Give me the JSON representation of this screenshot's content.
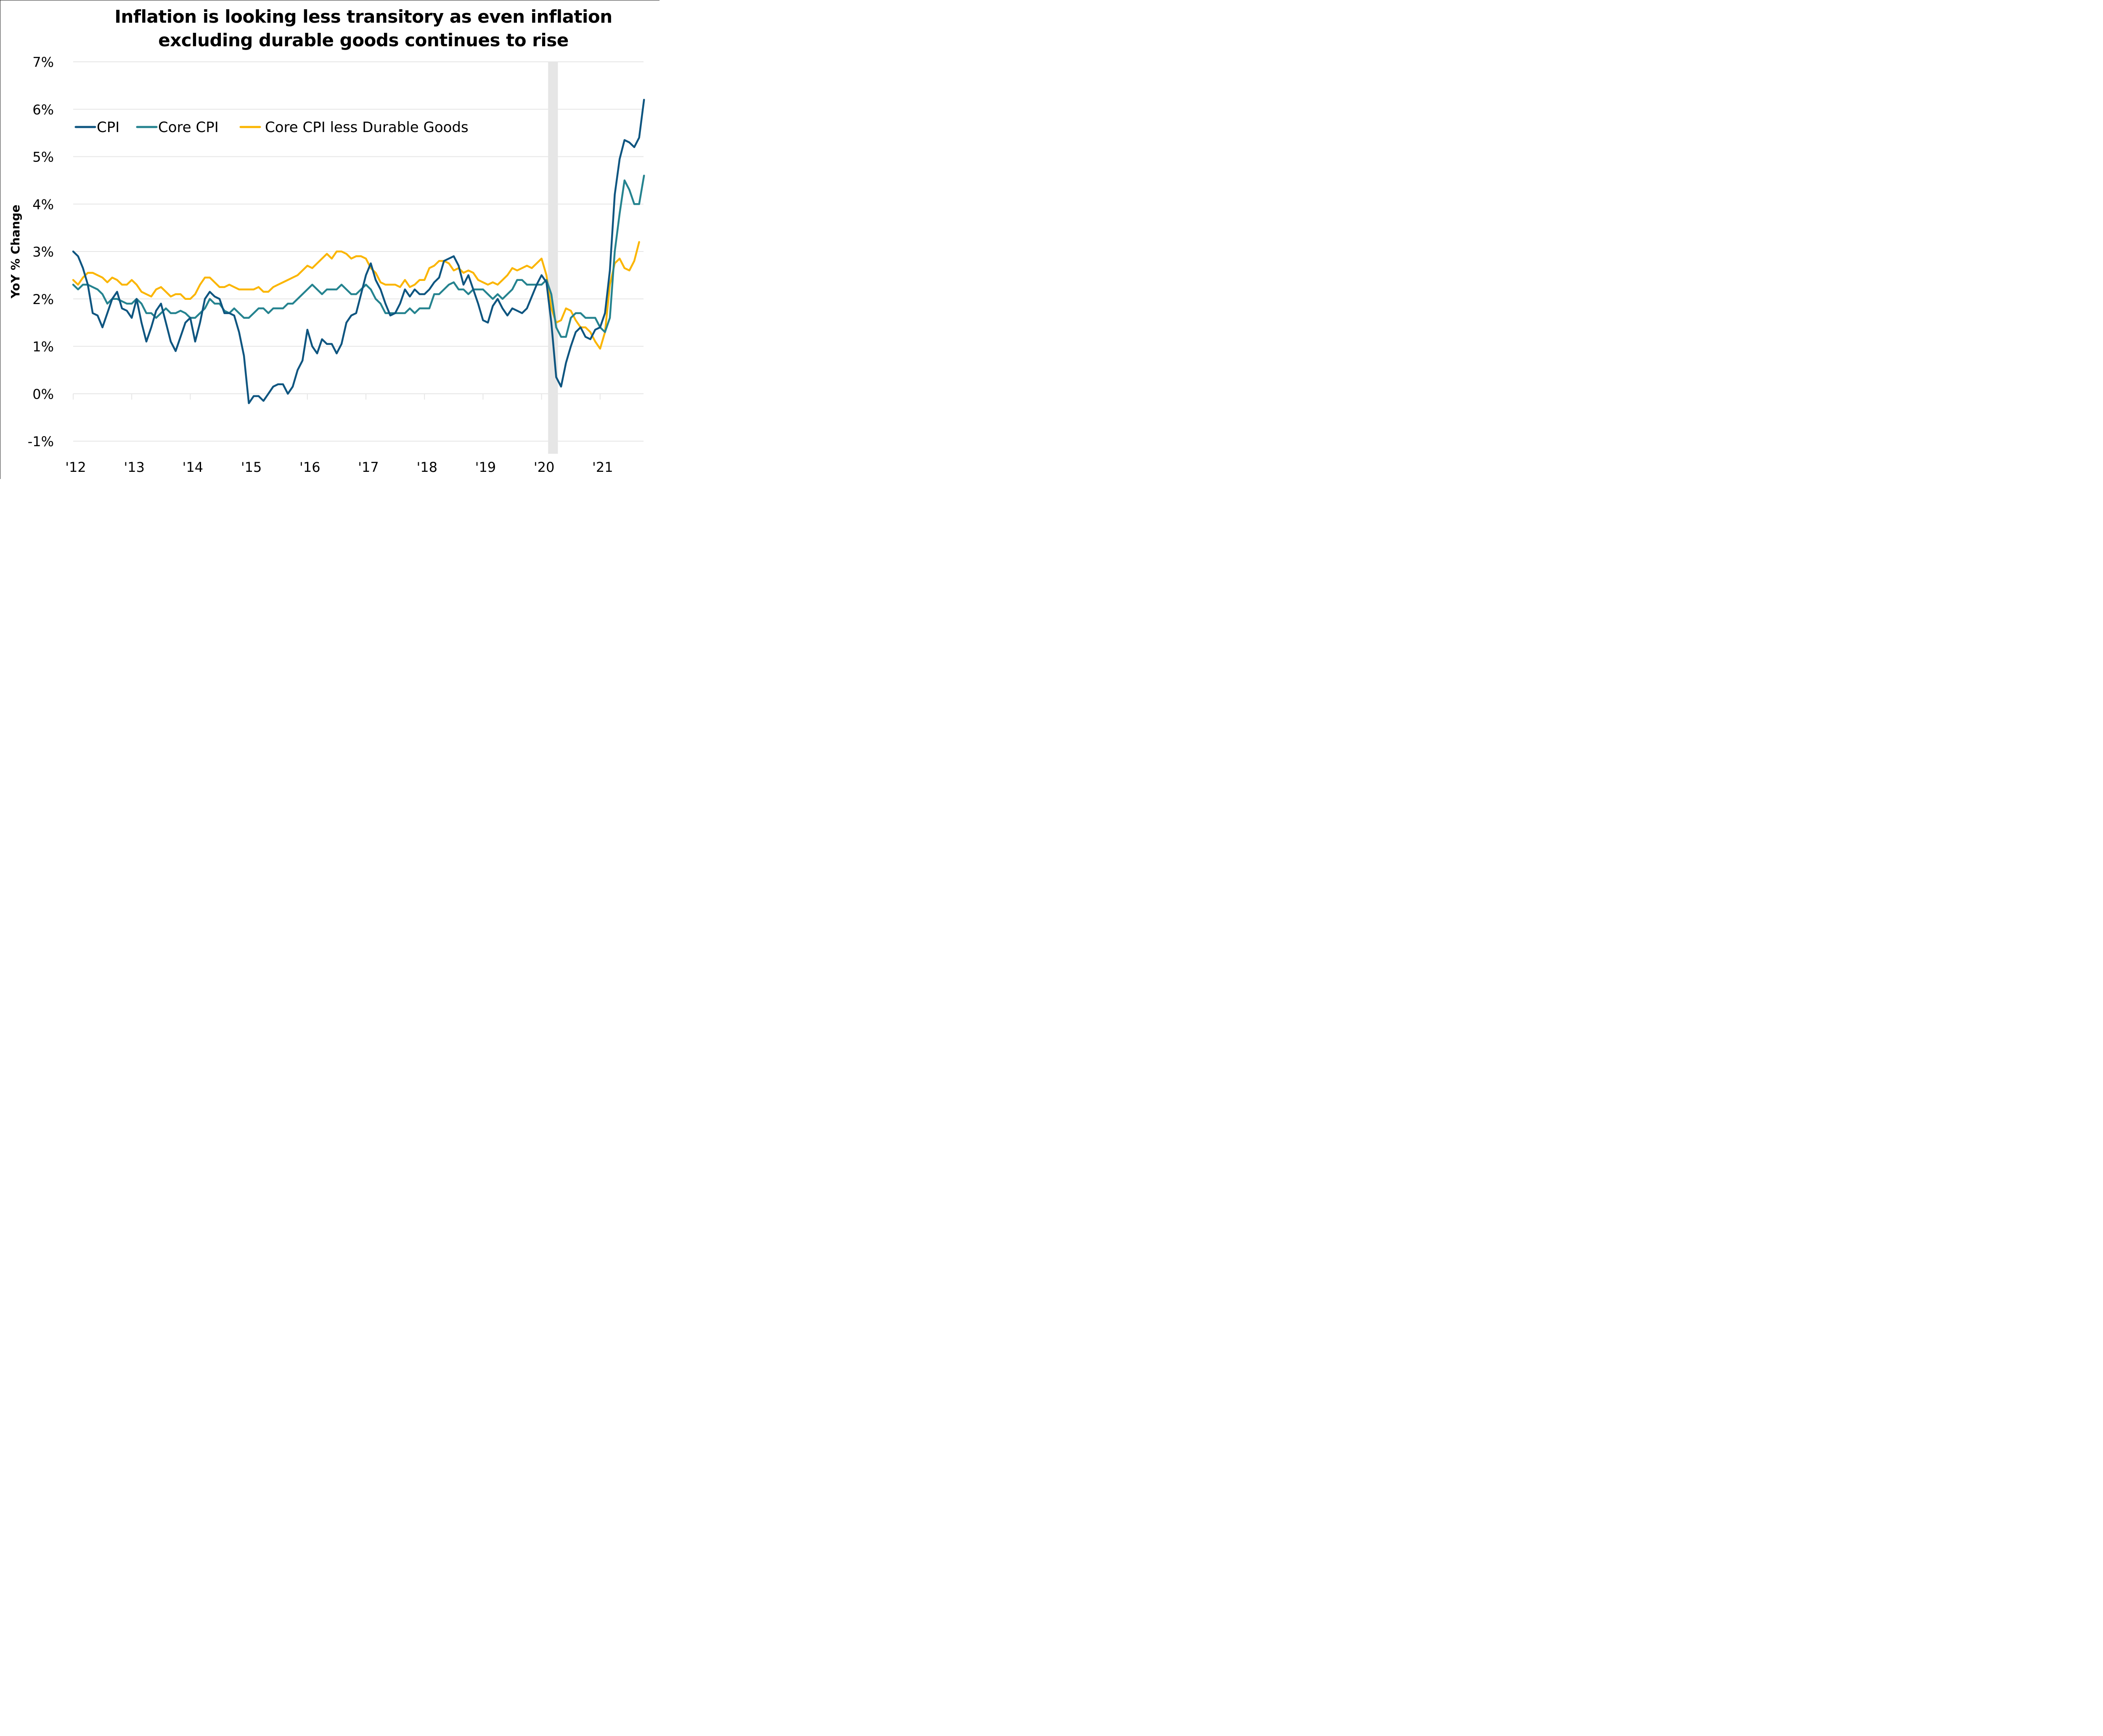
{
  "chart_data": {
    "type": "line",
    "title": "Inflation is looking less transitory as even inflation excluding durable goods continues to rise",
    "title_lines": [
      "Inflation is looking less transitory as even inflation",
      "excluding durable goods continues to rise"
    ],
    "xlabel": "",
    "ylabel": "YoY % Change",
    "ylim": [
      -1,
      7
    ],
    "yticks": [
      -1,
      0,
      1,
      2,
      3,
      4,
      5,
      6,
      7
    ],
    "ytick_labels": [
      "-1%",
      "0%",
      "1%",
      "2%",
      "3%",
      "4%",
      "5%",
      "6%",
      "7%"
    ],
    "x_start": "2012-01",
    "x_frequency": "monthly",
    "x_end": "2021-10",
    "xtick_labels": [
      "'12",
      "'13",
      "'14",
      "'15",
      "'16",
      "'17",
      "'18",
      "'19",
      "'20",
      "'21"
    ],
    "grid": "horizontal",
    "legend_position": "top-left",
    "shaded_regions": [
      {
        "label": "recession",
        "start": "2020-02",
        "end": "2020-04",
        "color": "#e6e6e6"
      }
    ],
    "series": [
      {
        "name": "CPI",
        "color": "#0e5580",
        "values": [
          3.0,
          2.9,
          2.65,
          2.3,
          1.7,
          1.65,
          1.4,
          1.7,
          2.0,
          2.15,
          1.8,
          1.75,
          1.6,
          2.0,
          1.5,
          1.1,
          1.4,
          1.75,
          1.9,
          1.5,
          1.1,
          0.9,
          1.2,
          1.5,
          1.6,
          1.1,
          1.5,
          2.0,
          2.15,
          2.05,
          2.0,
          1.7,
          1.7,
          1.65,
          1.3,
          0.8,
          -0.2,
          -0.05,
          -0.05,
          -0.15,
          0.0,
          0.15,
          0.2,
          0.2,
          0.0,
          0.15,
          0.5,
          0.7,
          1.35,
          1.0,
          0.85,
          1.15,
          1.05,
          1.05,
          0.85,
          1.05,
          1.5,
          1.65,
          1.7,
          2.1,
          2.5,
          2.75,
          2.4,
          2.2,
          1.9,
          1.65,
          1.7,
          1.9,
          2.2,
          2.05,
          2.2,
          2.1,
          2.1,
          2.2,
          2.35,
          2.45,
          2.8,
          2.85,
          2.9,
          2.7,
          2.3,
          2.5,
          2.2,
          1.9,
          1.55,
          1.5,
          1.85,
          2.0,
          1.8,
          1.65,
          1.8,
          1.75,
          1.7,
          1.8,
          2.05,
          2.3,
          2.5,
          2.35,
          1.5,
          0.35,
          0.15,
          0.65,
          1.0,
          1.3,
          1.4,
          1.2,
          1.15,
          1.35,
          1.4,
          1.7,
          2.6,
          4.2,
          4.95,
          5.35,
          5.3,
          5.2,
          5.4,
          6.2
        ]
      },
      {
        "name": "Core CPI",
        "color": "#25838f",
        "values": [
          2.3,
          2.2,
          2.3,
          2.3,
          2.25,
          2.2,
          2.1,
          1.9,
          2.0,
          2.0,
          1.95,
          1.9,
          1.9,
          2.0,
          1.9,
          1.7,
          1.7,
          1.6,
          1.7,
          1.8,
          1.7,
          1.7,
          1.75,
          1.7,
          1.6,
          1.6,
          1.7,
          1.8,
          2.0,
          1.9,
          1.9,
          1.75,
          1.7,
          1.8,
          1.7,
          1.6,
          1.6,
          1.7,
          1.8,
          1.8,
          1.7,
          1.8,
          1.8,
          1.8,
          1.9,
          1.9,
          2.0,
          2.1,
          2.2,
          2.3,
          2.2,
          2.1,
          2.2,
          2.2,
          2.2,
          2.3,
          2.2,
          2.1,
          2.1,
          2.2,
          2.3,
          2.2,
          2.0,
          1.9,
          1.7,
          1.7,
          1.7,
          1.7,
          1.7,
          1.8,
          1.7,
          1.8,
          1.8,
          1.8,
          2.1,
          2.1,
          2.2,
          2.3,
          2.35,
          2.2,
          2.2,
          2.1,
          2.2,
          2.2,
          2.2,
          2.1,
          2.0,
          2.1,
          2.0,
          2.1,
          2.2,
          2.4,
          2.4,
          2.3,
          2.3,
          2.3,
          2.3,
          2.4,
          2.1,
          1.4,
          1.2,
          1.2,
          1.6,
          1.7,
          1.7,
          1.6,
          1.6,
          1.6,
          1.4,
          1.3,
          1.6,
          3.0,
          3.8,
          4.5,
          4.3,
          4.0,
          4.0,
          4.6
        ]
      },
      {
        "name": "Core CPI less Durable Goods",
        "color": "#fbb500",
        "values": [
          2.4,
          2.3,
          2.45,
          2.55,
          2.55,
          2.5,
          2.45,
          2.35,
          2.45,
          2.4,
          2.3,
          2.3,
          2.4,
          2.3,
          2.15,
          2.1,
          2.05,
          2.2,
          2.25,
          2.15,
          2.05,
          2.1,
          2.1,
          2.0,
          2.0,
          2.1,
          2.3,
          2.45,
          2.45,
          2.35,
          2.25,
          2.25,
          2.3,
          2.25,
          2.2,
          2.2,
          2.2,
          2.2,
          2.25,
          2.15,
          2.15,
          2.25,
          2.3,
          2.35,
          2.4,
          2.45,
          2.5,
          2.6,
          2.7,
          2.65,
          2.75,
          2.85,
          2.95,
          2.85,
          3.0,
          3.0,
          2.95,
          2.85,
          2.9,
          2.9,
          2.85,
          2.65,
          2.55,
          2.35,
          2.3,
          2.3,
          2.3,
          2.25,
          2.4,
          2.25,
          2.3,
          2.4,
          2.4,
          2.65,
          2.7,
          2.8,
          2.8,
          2.75,
          2.6,
          2.65,
          2.55,
          2.6,
          2.55,
          2.4,
          2.35,
          2.3,
          2.35,
          2.3,
          2.4,
          2.5,
          2.65,
          2.6,
          2.65,
          2.7,
          2.65,
          2.75,
          2.85,
          2.5,
          1.8,
          1.5,
          1.55,
          1.8,
          1.75,
          1.55,
          1.4,
          1.4,
          1.3,
          1.1,
          0.95,
          1.3,
          2.3,
          2.75,
          2.85,
          2.65,
          2.6,
          2.8,
          3.2
        ]
      }
    ]
  }
}
